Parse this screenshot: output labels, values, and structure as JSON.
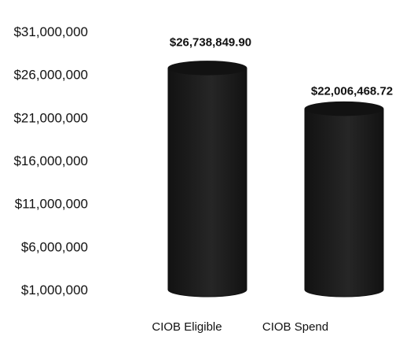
{
  "chart_data": {
    "type": "bar",
    "categories": [
      "CIOB Eligible",
      "CIOB Spend"
    ],
    "values": [
      26738849.9,
      22006468.72
    ],
    "value_labels": [
      "$26,738,849.90",
      "$22,006,468.72"
    ],
    "ylim": [
      1000000,
      31000000
    ],
    "yticks": [
      1000000,
      6000000,
      11000000,
      16000000,
      21000000,
      26000000,
      31000000
    ],
    "ytick_labels": [
      "$1,000,000",
      "$6,000,000",
      "$11,000,000",
      "$16,000,000",
      "$21,000,000",
      "$26,000,000",
      "$31,000,000"
    ],
    "bar_style": "3d-cylinder",
    "grid": false,
    "colors": {
      "bar": "#121212",
      "bar_highlight": "#262626",
      "text": "#111111"
    }
  }
}
